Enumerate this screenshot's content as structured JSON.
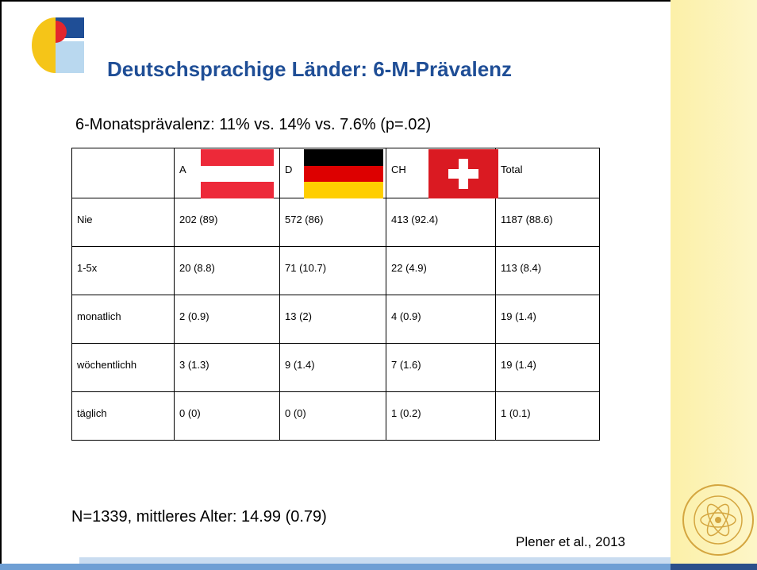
{
  "title": "Deutschsprachige Länder: 6-M-Prävalenz",
  "subtitle": "6-Monatsprävalenz: 11% vs. 14% vs. 7.6% (p=.02)",
  "table": {
    "header": [
      "A",
      "D",
      "CH",
      "Total"
    ],
    "rows": [
      {
        "label": "Nie",
        "cells": [
          "202 (89)",
          "572 (86)",
          "413 (92.4)",
          "1187 (88.6)"
        ]
      },
      {
        "label": "1-5x",
        "cells": [
          "20 (8.8)",
          "71 (10.7)",
          "22 (4.9)",
          "113 (8.4)"
        ]
      },
      {
        "label": "monatlich",
        "cells": [
          "2 (0.9)",
          "13 (2)",
          "4 (0.9)",
          "19 (1.4)"
        ]
      },
      {
        "label": "wöchentlichh",
        "cells": [
          "3 (1.3)",
          "9 (1.4)",
          "7 (1.6)",
          "19 (1.4)"
        ]
      },
      {
        "label": "täglich",
        "cells": [
          "0 (0)",
          "0 (0)",
          "1 (0.2)",
          "1 (0.1)"
        ]
      }
    ]
  },
  "note": "N=1339, mittleres Alter: 14.99 (0.79)",
  "citation": "Plener et al., 2013"
}
